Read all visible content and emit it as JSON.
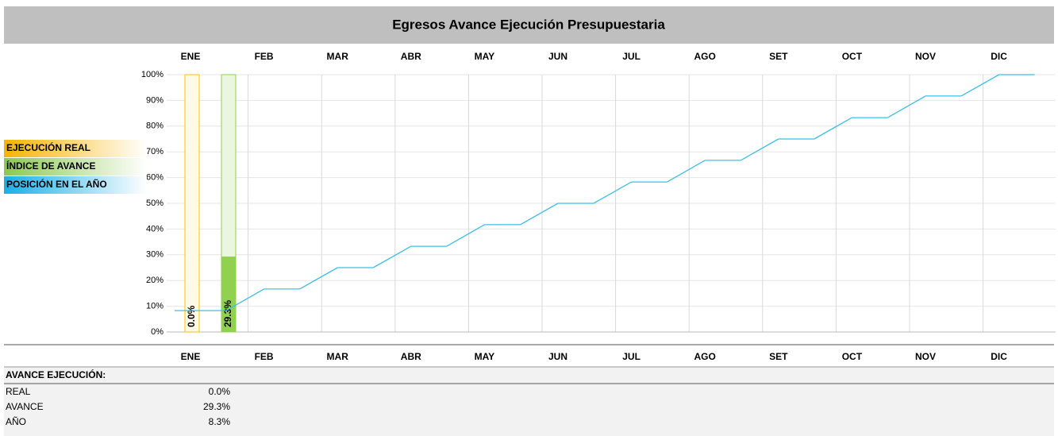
{
  "chart_data": {
    "type": "combo",
    "title": "Egresos Avance Ejecución Presupuestaria",
    "categories": [
      "ENE",
      "FEB",
      "MAR",
      "ABR",
      "MAY",
      "JUN",
      "JUL",
      "AGO",
      "SET",
      "OCT",
      "NOV",
      "DIC"
    ],
    "series": [
      {
        "name": "EJECUCIÓN REAL",
        "type": "bar",
        "color": "#ffc000",
        "values": [
          0.0,
          null,
          null,
          null,
          null,
          null,
          null,
          null,
          null,
          null,
          null,
          null
        ],
        "value_labels": [
          "0.0%",
          null,
          null,
          null,
          null,
          null,
          null,
          null,
          null,
          null,
          null,
          null
        ]
      },
      {
        "name": "ÍNDICE DE AVANCE",
        "type": "bar",
        "color": "#92d050",
        "values": [
          29.3,
          null,
          null,
          null,
          null,
          null,
          null,
          null,
          null,
          null,
          null,
          null
        ],
        "value_labels": [
          "29.3%",
          null,
          null,
          null,
          null,
          null,
          null,
          null,
          null,
          null,
          null,
          null
        ]
      },
      {
        "name": "POSICIÓN EN EL AÑO",
        "type": "step",
        "color": "#3cbfe8",
        "values": [
          8.3,
          16.7,
          25,
          33.3,
          41.7,
          50,
          58.3,
          66.7,
          75,
          83.3,
          91.7,
          100
        ]
      }
    ],
    "ylim": [
      0,
      100
    ],
    "yticks": [
      {
        "value": 0,
        "label": "0%"
      },
      {
        "value": 10,
        "label": "10%"
      },
      {
        "value": 20,
        "label": "20%"
      },
      {
        "value": 30,
        "label": "30%"
      },
      {
        "value": 40,
        "label": "40%"
      },
      {
        "value": 50,
        "label": "50%"
      },
      {
        "value": 60,
        "label": "60%"
      },
      {
        "value": 70,
        "label": "70%"
      },
      {
        "value": 80,
        "label": "80%"
      },
      {
        "value": 90,
        "label": "90%"
      },
      {
        "value": 100,
        "label": "100%"
      }
    ],
    "grid": true
  },
  "table": {
    "title": "AVANCE EJECUCIÓN:",
    "rows": [
      [
        "REAL",
        "0.0%"
      ],
      [
        "AVANCE",
        "29.3%"
      ],
      [
        "AÑO",
        "8.3%"
      ]
    ]
  }
}
